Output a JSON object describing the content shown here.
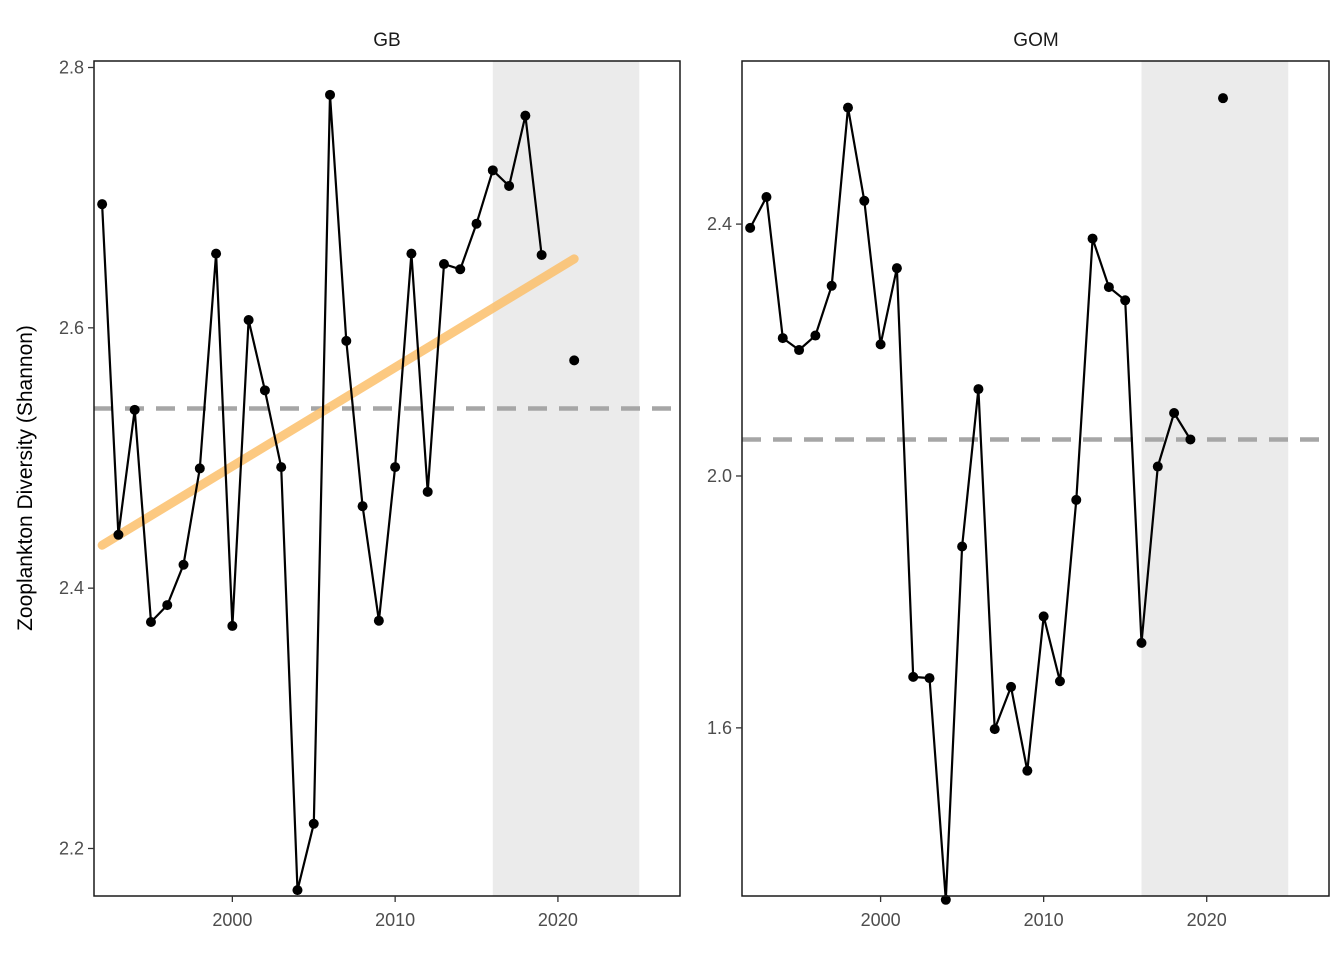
{
  "chart_data": {
    "type": "line",
    "ylabel": "Zooplankton Diversity (Shannon)",
    "xlabel": "",
    "colors": {
      "series": "#000000",
      "trend": "#fbbf6b",
      "mean_line": "#a6a6a6",
      "shade": "#ebebeb"
    },
    "panels": [
      {
        "title": "GB",
        "xlim": [
          1991.5,
          2027.5
        ],
        "ylim": [
          2.1635,
          2.805
        ],
        "xticks": [
          2000,
          2010,
          2020
        ],
        "yticks": [
          2.2,
          2.4,
          2.6,
          2.8
        ],
        "ytick_labels": [
          "2.2",
          "2.4",
          "2.6",
          "2.8"
        ],
        "shade_range": [
          2016,
          2025
        ],
        "mean": 2.538,
        "trend": {
          "x": [
            1992,
            2021
          ],
          "y": [
            2.433,
            2.653
          ]
        },
        "series": [
          {
            "x": [
              1992,
              1993,
              1994,
              1995,
              1996,
              1997,
              1998,
              1999,
              2000,
              2001,
              2002,
              2003,
              2004,
              2005,
              2006,
              2007,
              2008,
              2009,
              2010,
              2011,
              2012,
              2013,
              2014,
              2015,
              2016,
              2017,
              2018,
              2019
            ],
            "y": [
              2.695,
              2.441,
              2.537,
              2.374,
              2.387,
              2.418,
              2.492,
              2.657,
              2.371,
              2.606,
              2.552,
              2.493,
              2.168,
              2.219,
              2.779,
              2.59,
              2.463,
              2.375,
              2.493,
              2.657,
              2.474,
              2.649,
              2.645,
              2.68,
              2.721,
              2.709,
              2.763,
              2.656
            ]
          }
        ],
        "isolated_points": [
          {
            "x": 2021,
            "y": 2.575
          }
        ]
      },
      {
        "title": "GOM",
        "xlim": [
          1991.5,
          2027.5
        ],
        "ylim": [
          1.333,
          2.659
        ],
        "xticks": [
          2000,
          2010,
          2020
        ],
        "yticks": [
          1.6,
          2.0,
          2.4
        ],
        "ytick_labels": [
          "1.6",
          "2.0",
          "2.4"
        ],
        "shade_range": [
          2016,
          2025
        ],
        "mean": 2.058,
        "series": [
          {
            "x": [
              1992,
              1993,
              1994,
              1995,
              1996,
              1997,
              1998,
              1999,
              2000,
              2001,
              2002,
              2003,
              2004,
              2005,
              2006,
              2007,
              2008,
              2009,
              2010,
              2011,
              2012,
              2013,
              2014,
              2015,
              2016,
              2017,
              2018,
              2019
            ],
            "y": [
              2.394,
              2.443,
              2.219,
              2.2,
              2.223,
              2.302,
              2.585,
              2.437,
              2.209,
              2.33,
              1.681,
              1.679,
              1.327,
              1.888,
              2.138,
              1.598,
              1.665,
              1.532,
              1.777,
              1.674,
              1.962,
              2.377,
              2.3,
              2.279,
              1.735,
              2.015,
              2.1,
              2.058
            ]
          }
        ],
        "isolated_points": [
          {
            "x": 2021,
            "y": 2.6
          }
        ]
      }
    ]
  }
}
